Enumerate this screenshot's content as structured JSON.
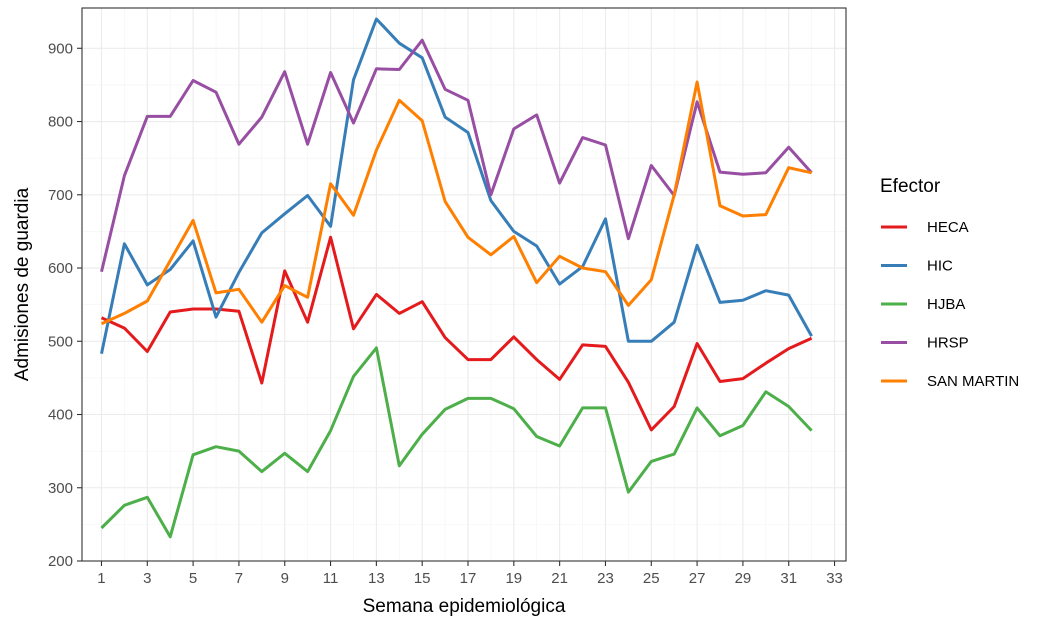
{
  "chart_data": {
    "type": "line",
    "xlabel": "Semana epidemiológica",
    "ylabel": "Admisiones de guardia",
    "xlim": [
      0.15,
      33.5
    ],
    "ylim": [
      200,
      955
    ],
    "x_ticks": [
      1,
      3,
      5,
      7,
      9,
      11,
      13,
      15,
      17,
      19,
      21,
      23,
      25,
      27,
      29,
      31,
      33
    ],
    "y_ticks": [
      200,
      300,
      400,
      500,
      600,
      700,
      800,
      900
    ],
    "grid": true,
    "legend": {
      "title": "Efector",
      "position": "right"
    },
    "x": [
      1,
      2,
      3,
      4,
      5,
      6,
      7,
      8,
      9,
      10,
      11,
      12,
      13,
      14,
      15,
      16,
      17,
      18,
      19,
      20,
      21,
      22,
      23,
      24,
      25,
      26,
      27,
      28,
      29,
      30,
      31,
      32
    ],
    "series": [
      {
        "name": "HECA",
        "color": "#e41a1c",
        "values": [
          532,
          518,
          486,
          540,
          544,
          544,
          541,
          443,
          596,
          526,
          642,
          517,
          564,
          538,
          554,
          505,
          475,
          475,
          506,
          475,
          448,
          495,
          493,
          444,
          379,
          411,
          497,
          445,
          449,
          470,
          490,
          504
        ]
      },
      {
        "name": "HIC",
        "color": "#377eb8",
        "values": [
          483,
          633,
          577,
          598,
          637,
          533,
          594,
          648,
          674,
          699,
          657,
          857,
          940,
          907,
          887,
          806,
          785,
          692,
          650,
          630,
          578,
          602,
          667,
          500,
          500,
          526,
          631,
          553,
          556,
          569,
          563,
          507
        ]
      },
      {
        "name": "HJBA",
        "color": "#4daf4a",
        "values": [
          245,
          276,
          287,
          233,
          345,
          356,
          350,
          322,
          347,
          322,
          378,
          452,
          491,
          330,
          373,
          407,
          422,
          422,
          408,
          370,
          357,
          409,
          409,
          294,
          336,
          346,
          409,
          371,
          385,
          431,
          411,
          378
        ]
      },
      {
        "name": "HRSP",
        "color": "#984ea3",
        "values": [
          595,
          726,
          807,
          807,
          856,
          840,
          769,
          806,
          868,
          769,
          867,
          798,
          872,
          871,
          911,
          844,
          829,
          700,
          790,
          809,
          716,
          778,
          768,
          640,
          740,
          699,
          827,
          731,
          728,
          730,
          765,
          730
        ]
      },
      {
        "name": "SAN MARTIN",
        "color": "#ff7f00",
        "values": [
          524,
          538,
          555,
          610,
          665,
          566,
          571,
          526,
          576,
          560,
          715,
          672,
          761,
          829,
          801,
          691,
          642,
          618,
          643,
          580,
          616,
          600,
          595,
          549,
          584,
          700,
          854,
          685,
          671,
          673,
          737,
          730
        ]
      }
    ]
  }
}
